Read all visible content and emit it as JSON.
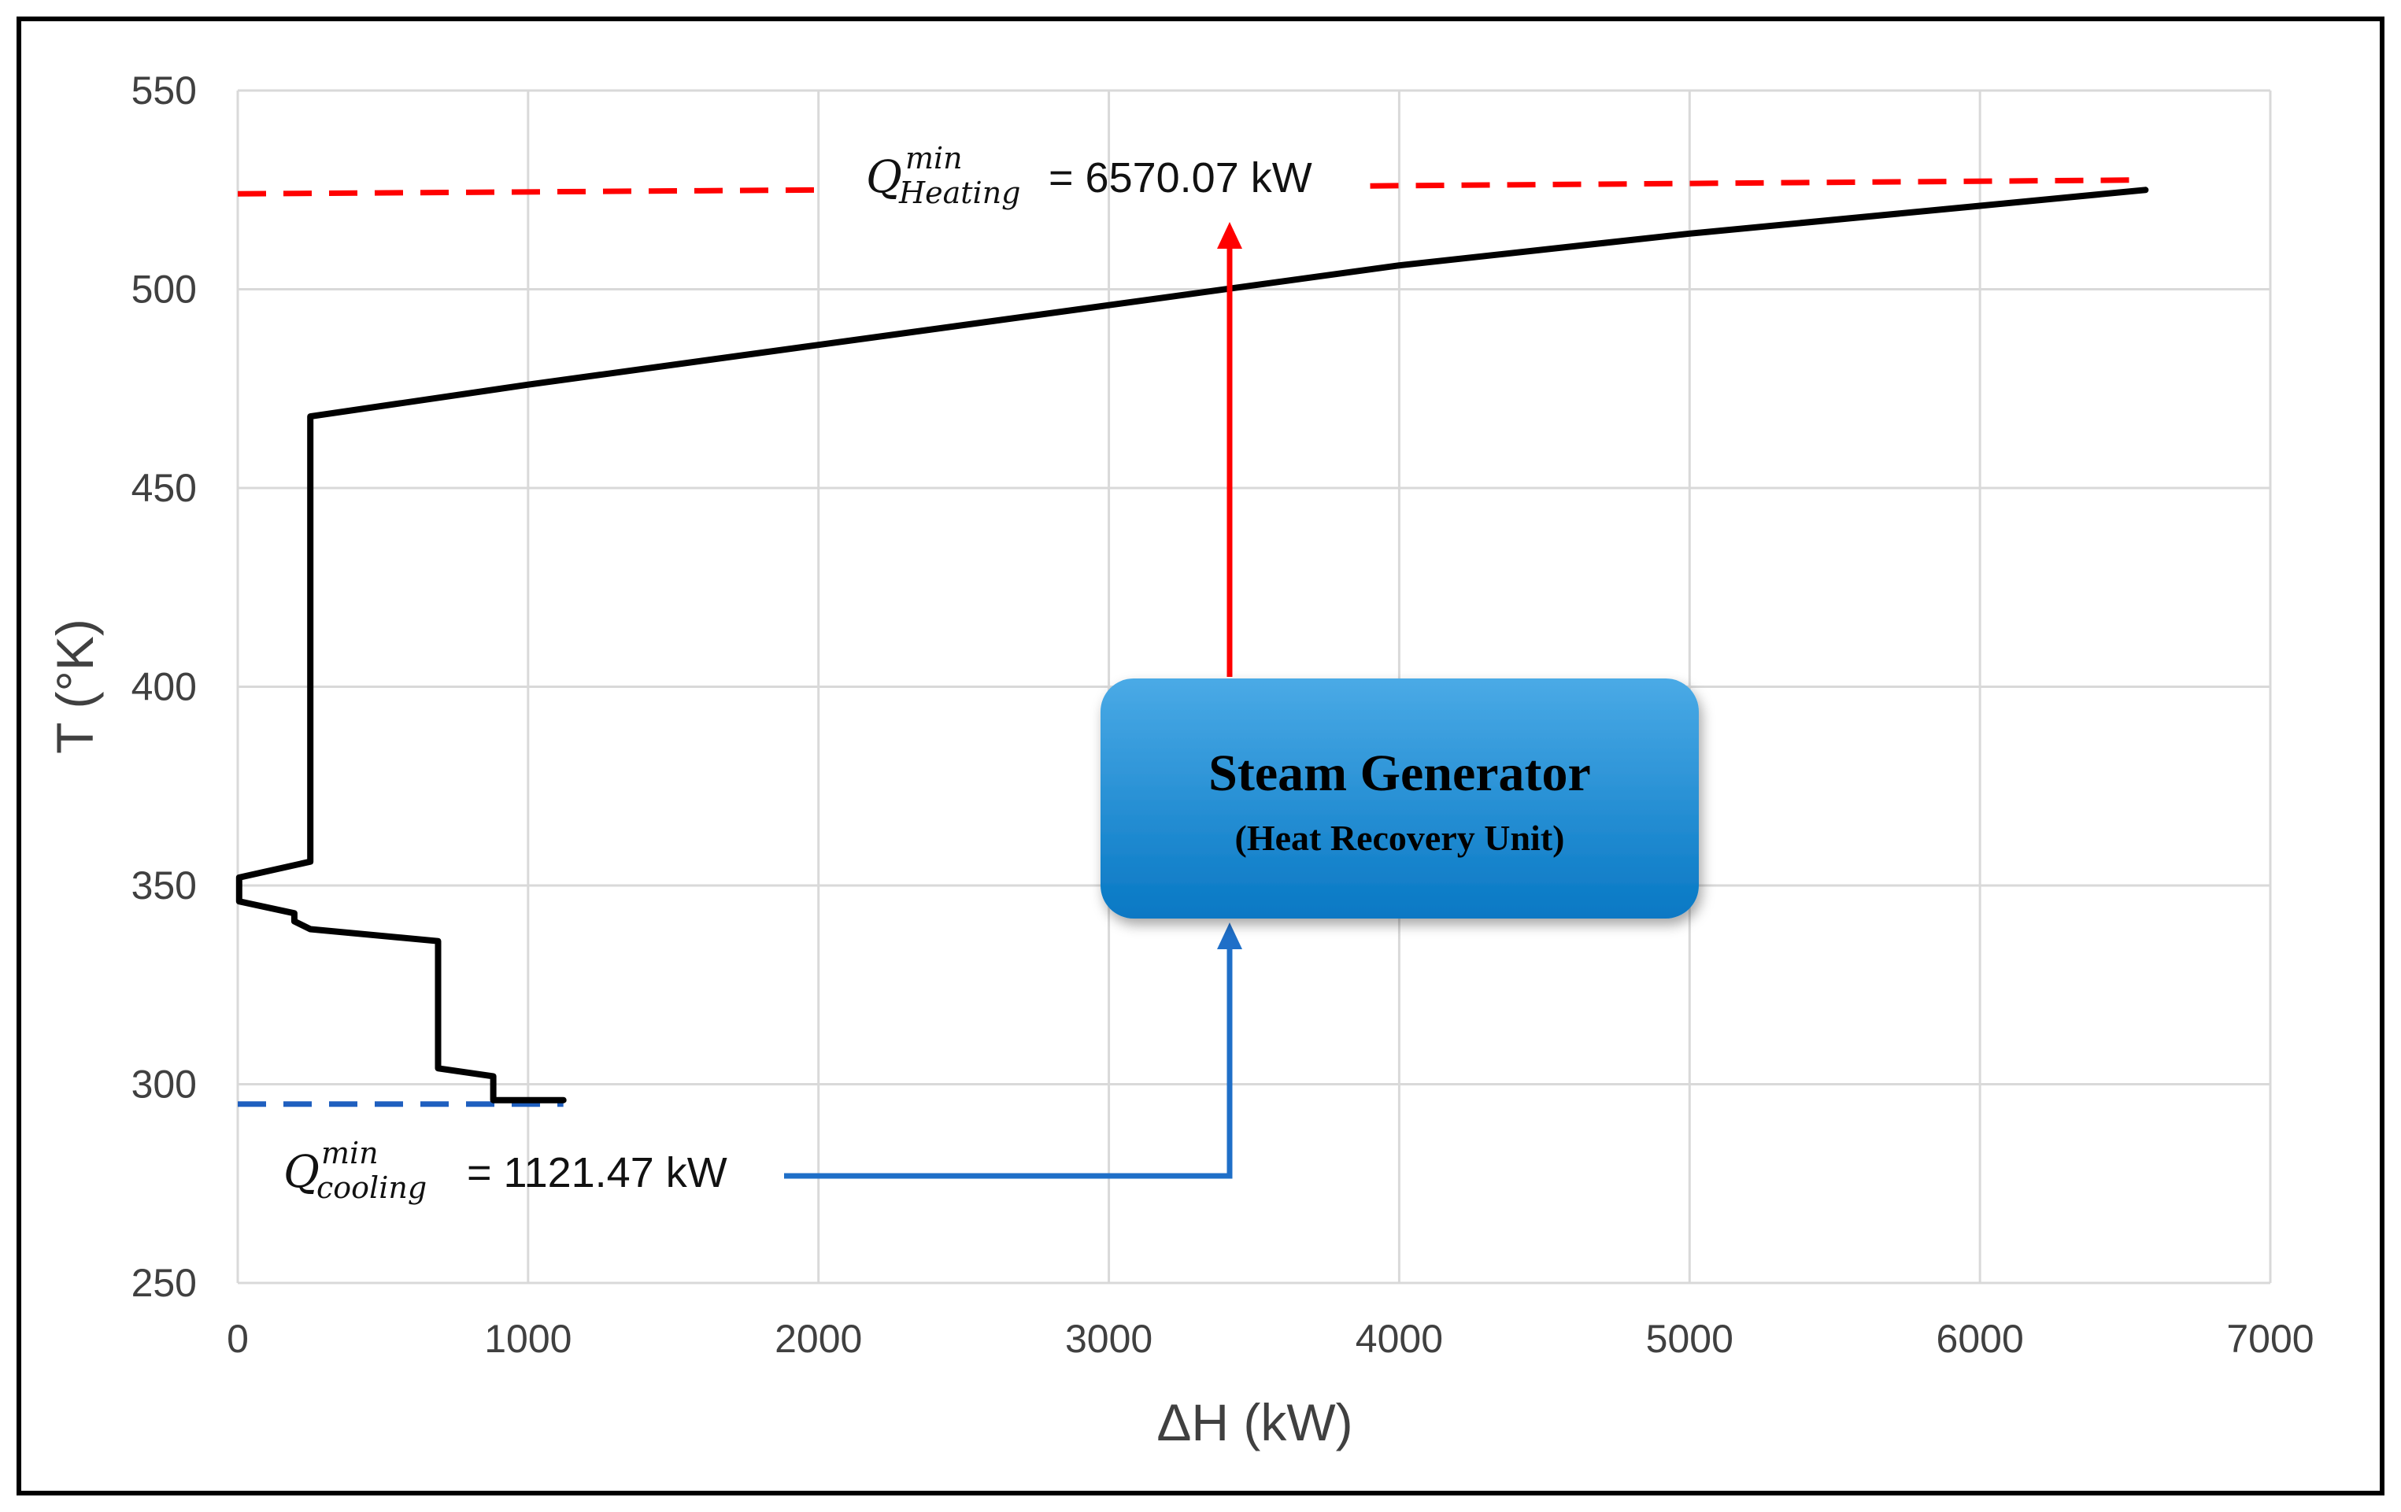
{
  "chart_data": {
    "type": "line",
    "title": "",
    "xlabel": "ΔH (kW)",
    "ylabel": "T (°K)",
    "xlim": [
      0,
      7000
    ],
    "ylim": [
      250,
      550
    ],
    "x_ticks": [
      0,
      1000,
      2000,
      3000,
      4000,
      5000,
      6000,
      7000
    ],
    "y_ticks": [
      250,
      300,
      350,
      400,
      450,
      500,
      550
    ],
    "grid": true,
    "legend": "none",
    "series": [
      {
        "color": "#000000",
        "points": [
          [
            1121.47,
            296
          ],
          [
            880,
            296
          ],
          [
            880,
            302
          ],
          [
            690,
            304
          ],
          [
            690,
            336
          ],
          [
            250,
            339
          ],
          [
            195,
            341
          ],
          [
            195,
            343
          ],
          [
            5,
            346
          ],
          [
            5,
            352
          ],
          [
            250,
            356
          ],
          [
            250,
            468
          ],
          [
            1000,
            476
          ],
          [
            2000,
            486
          ],
          [
            3000,
            496
          ],
          [
            4000,
            506
          ],
          [
            5000,
            514
          ],
          [
            6000,
            521
          ],
          [
            6570.07,
            525
          ]
        ]
      }
    ],
    "reference_lines": [
      {
        "name": "heating",
        "color": "#ff0000",
        "style": "dashed",
        "segments": [
          [
            [
              0,
              524
            ],
            [
              2030,
              525
            ]
          ],
          [
            [
              3900,
              526
            ],
            [
              6570.07,
              527.5
            ]
          ]
        ]
      },
      {
        "name": "cooling",
        "color": "#1f5fbf",
        "style": "dashed",
        "segments": [
          [
            [
              0,
              295
            ],
            [
              1121.47,
              295
            ]
          ]
        ]
      }
    ],
    "annotations": {
      "heating": {
        "symbol": "Q",
        "subscript": "Heating",
        "superscript": "min",
        "text": "= 6570.07 kW"
      },
      "cooling": {
        "symbol": "Q",
        "subscript": "cooling",
        "superscript": "min",
        "text": " = 1121.47 kW"
      }
    },
    "unit_box": {
      "title": "Steam Generator",
      "subtitle": "(Heat Recovery Unit)"
    },
    "colors": {
      "curve": "#000000",
      "heating": "#ff0000",
      "cooling": "#1f6fc8",
      "grid": "#d9d9d9",
      "box_top": "#4aaae6",
      "box_bottom": "#0878c4"
    }
  }
}
